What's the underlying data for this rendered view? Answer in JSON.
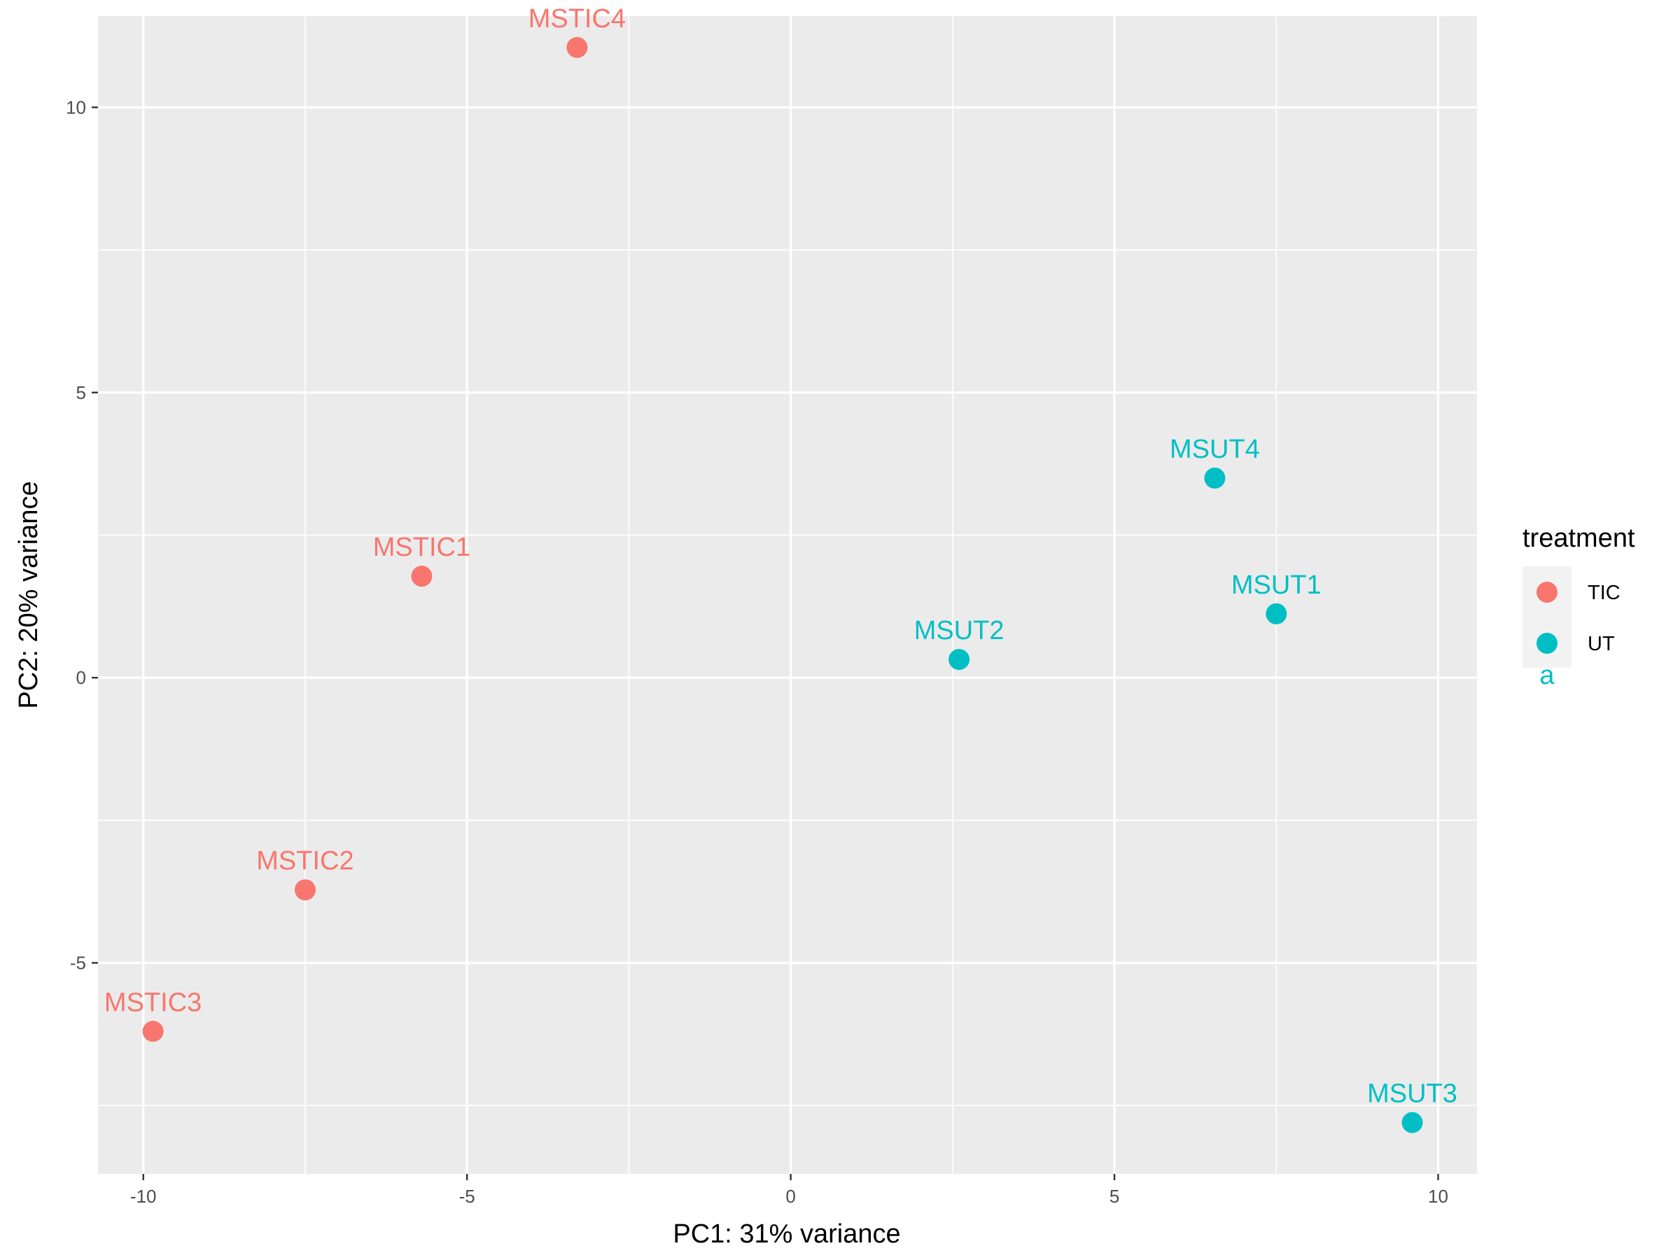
{
  "chart_data": {
    "type": "scatter",
    "title": "",
    "xlabel": "PC1: 31% variance",
    "ylabel": "PC2: 20% variance",
    "xlim": [
      -10.7,
      10.6
    ],
    "ylim": [
      -8.7,
      11.6
    ],
    "xticks": [
      -10,
      -5,
      0,
      5,
      10
    ],
    "yticks": [
      -5,
      0,
      5,
      10
    ],
    "xtick_labels": [
      "-10",
      "-5",
      "0",
      "5",
      "10"
    ],
    "ytick_labels": [
      "-5",
      "0",
      "5",
      "10"
    ],
    "grid": true,
    "legend": {
      "title": "treatment",
      "position": "right",
      "entries": [
        {
          "name": "TIC",
          "color": "#F8766D"
        },
        {
          "name": "UT",
          "color": "#00BFC4"
        }
      ],
      "stray_glyph": "a"
    },
    "series": [
      {
        "name": "TIC",
        "color": "#F8766D",
        "points": [
          {
            "label": "MSTIC4",
            "x": -3.3,
            "y": 11.05
          },
          {
            "label": "MSTIC1",
            "x": -5.7,
            "y": 1.78
          },
          {
            "label": "MSTIC2",
            "x": -7.5,
            "y": -3.72
          },
          {
            "label": "MSTIC3",
            "x": -9.85,
            "y": -6.2
          }
        ]
      },
      {
        "name": "UT",
        "color": "#00BFC4",
        "points": [
          {
            "label": "MSUT4",
            "x": 6.55,
            "y": 3.5
          },
          {
            "label": "MSUT1",
            "x": 7.5,
            "y": 1.12
          },
          {
            "label": "MSUT2",
            "x": 2.6,
            "y": 0.32
          },
          {
            "label": "MSUT3",
            "x": 9.6,
            "y": -7.8
          }
        ]
      }
    ]
  }
}
